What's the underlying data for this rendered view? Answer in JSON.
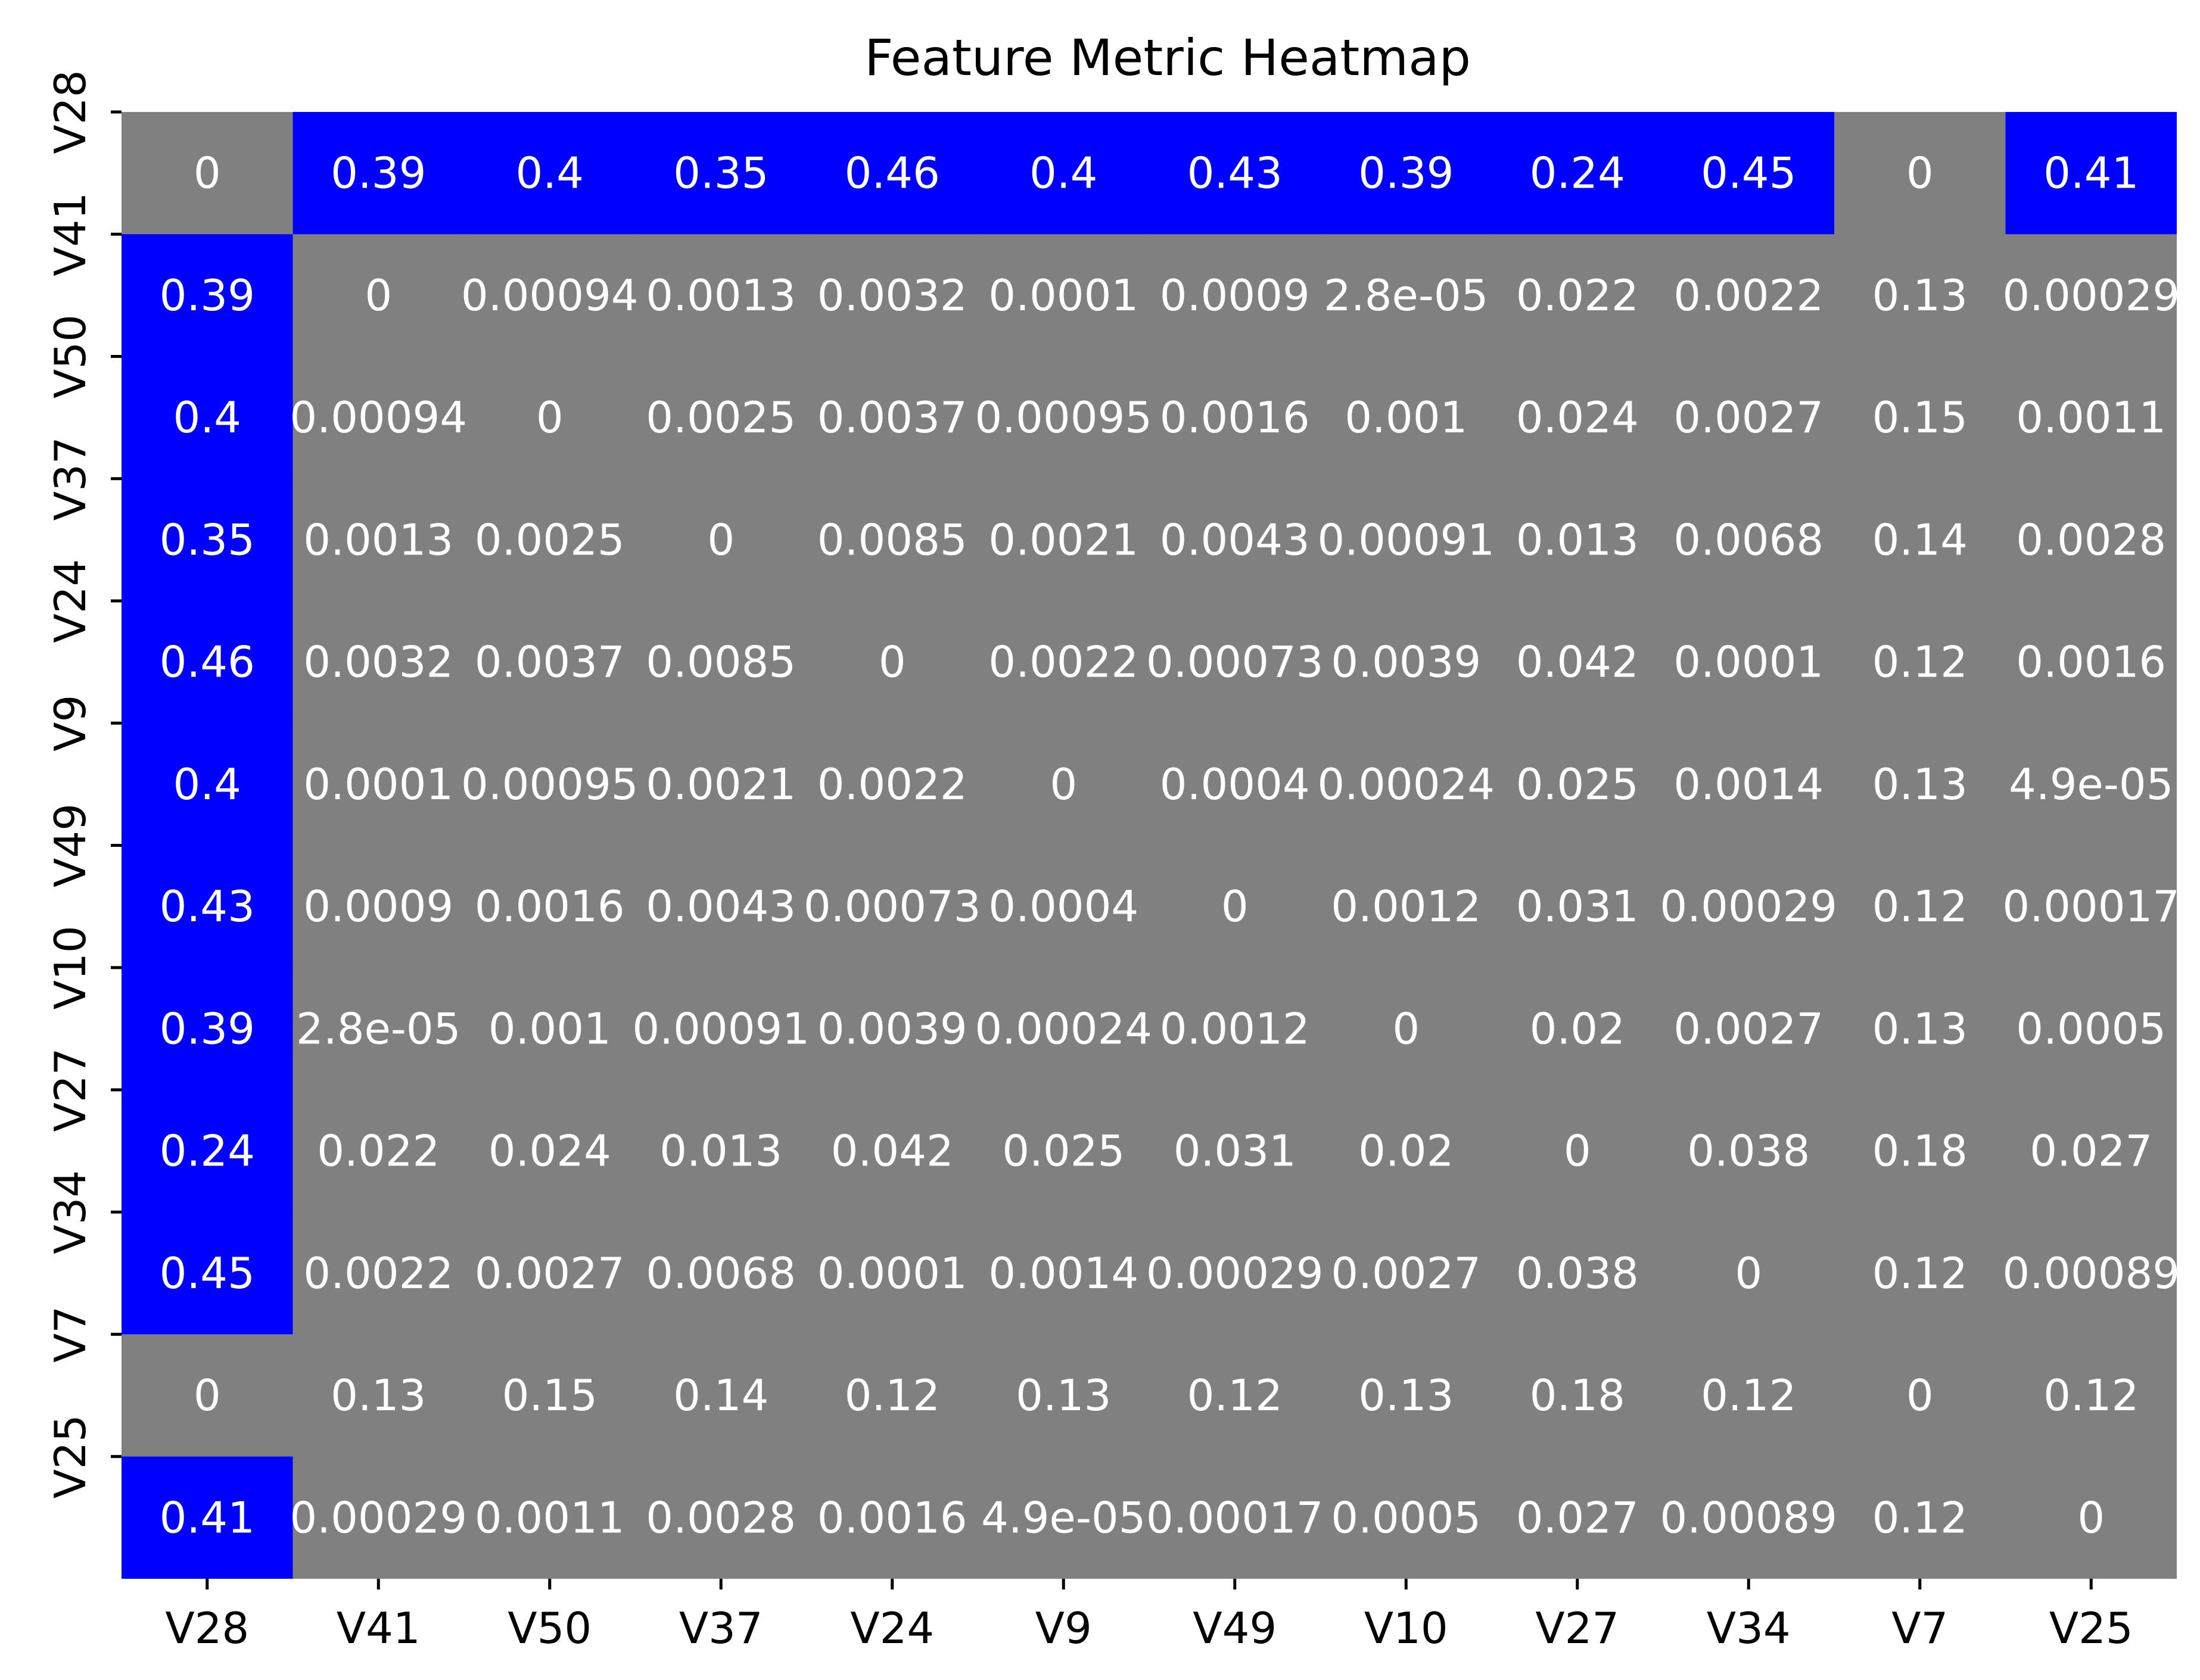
{
  "chart_data": {
    "type": "heatmap",
    "title": "Feature Metric Heatmap",
    "xlabel": "",
    "ylabel": "",
    "x_categories": [
      "V28",
      "V41",
      "V50",
      "V37",
      "V24",
      "V9",
      "V49",
      "V10",
      "V27",
      "V34",
      "V7",
      "V25"
    ],
    "y_categories": [
      "V28",
      "V41",
      "V50",
      "V37",
      "V24",
      "V9",
      "V49",
      "V10",
      "V27",
      "V34",
      "V7",
      "V25"
    ],
    "values": [
      [
        0,
        0.39,
        0.4,
        0.35,
        0.46,
        0.4,
        0.43,
        0.39,
        0.24,
        0.45,
        0,
        0.41
      ],
      [
        0.39,
        0,
        0.00094,
        0.0013,
        0.0032,
        0.0001,
        0.0009,
        2.8e-05,
        0.022,
        0.0022,
        0.13,
        0.00029
      ],
      [
        0.4,
        0.00094,
        0,
        0.0025,
        0.0037,
        0.00095,
        0.0016,
        0.001,
        0.024,
        0.0027,
        0.15,
        0.0011
      ],
      [
        0.35,
        0.0013,
        0.0025,
        0,
        0.0085,
        0.0021,
        0.0043,
        0.00091,
        0.013,
        0.0068,
        0.14,
        0.0028
      ],
      [
        0.46,
        0.0032,
        0.0037,
        0.0085,
        0,
        0.0022,
        0.00073,
        0.0039,
        0.042,
        0.0001,
        0.12,
        0.0016
      ],
      [
        0.4,
        0.0001,
        0.00095,
        0.0021,
        0.0022,
        0,
        0.0004,
        0.00024,
        0.025,
        0.0014,
        0.13,
        4.9e-05
      ],
      [
        0.43,
        0.0009,
        0.0016,
        0.0043,
        0.00073,
        0.0004,
        0,
        0.0012,
        0.031,
        0.00029,
        0.12,
        0.00017
      ],
      [
        0.39,
        2.8e-05,
        0.001,
        0.00091,
        0.0039,
        0.00024,
        0.0012,
        0,
        0.02,
        0.0027,
        0.13,
        0.0005
      ],
      [
        0.24,
        0.022,
        0.024,
        0.013,
        0.042,
        0.025,
        0.031,
        0.02,
        0,
        0.038,
        0.18,
        0.027
      ],
      [
        0.45,
        0.0022,
        0.0027,
        0.0068,
        0.0001,
        0.0014,
        0.00029,
        0.0027,
        0.038,
        0,
        0.12,
        0.00089
      ],
      [
        0,
        0.13,
        0.15,
        0.14,
        0.12,
        0.13,
        0.12,
        0.13,
        0.18,
        0.12,
        0,
        0.12
      ],
      [
        0.41,
        0.00029,
        0.0011,
        0.0028,
        0.0016,
        4.9e-05,
        0.00017,
        0.0005,
        0.027,
        0.00089,
        0.12,
        0
      ]
    ],
    "value_labels": [
      [
        "0",
        "0.39",
        "0.4",
        "0.35",
        "0.46",
        "0.4",
        "0.43",
        "0.39",
        "0.24",
        "0.45",
        "0",
        "0.41"
      ],
      [
        "0.39",
        "0",
        "0.00094",
        "0.0013",
        "0.0032",
        "0.0001",
        "0.0009",
        "2.8e-05",
        "0.022",
        "0.0022",
        "0.13",
        "0.00029"
      ],
      [
        "0.4",
        "0.00094",
        "0",
        "0.0025",
        "0.0037",
        "0.00095",
        "0.0016",
        "0.001",
        "0.024",
        "0.0027",
        "0.15",
        "0.0011"
      ],
      [
        "0.35",
        "0.0013",
        "0.0025",
        "0",
        "0.0085",
        "0.0021",
        "0.0043",
        "0.00091",
        "0.013",
        "0.0068",
        "0.14",
        "0.0028"
      ],
      [
        "0.46",
        "0.0032",
        "0.0037",
        "0.0085",
        "0",
        "0.0022",
        "0.00073",
        "0.0039",
        "0.042",
        "0.0001",
        "0.12",
        "0.0016"
      ],
      [
        "0.4",
        "0.0001",
        "0.00095",
        "0.0021",
        "0.0022",
        "0",
        "0.0004",
        "0.00024",
        "0.025",
        "0.0014",
        "0.13",
        "4.9e-05"
      ],
      [
        "0.43",
        "0.0009",
        "0.0016",
        "0.0043",
        "0.00073",
        "0.0004",
        "0",
        "0.0012",
        "0.031",
        "0.00029",
        "0.12",
        "0.00017"
      ],
      [
        "0.39",
        "2.8e-05",
        "0.001",
        "0.00091",
        "0.0039",
        "0.00024",
        "0.0012",
        "0",
        "0.02",
        "0.0027",
        "0.13",
        "0.0005"
      ],
      [
        "0.24",
        "0.022",
        "0.024",
        "0.013",
        "0.042",
        "0.025",
        "0.031",
        "0.02",
        "0",
        "0.038",
        "0.18",
        "0.027"
      ],
      [
        "0.45",
        "0.0022",
        "0.0027",
        "0.0068",
        "0.0001",
        "0.0014",
        "0.00029",
        "0.0027",
        "0.038",
        "0",
        "0.12",
        "0.00089"
      ],
      [
        "0",
        "0.13",
        "0.15",
        "0.14",
        "0.12",
        "0.13",
        "0.12",
        "0.13",
        "0.18",
        "0.12",
        "0",
        "0.12"
      ],
      [
        "0.41",
        "0.00029",
        "0.0011",
        "0.0028",
        "0.0016",
        "4.9e-05",
        "0.00017",
        "0.0005",
        "0.027",
        "0.00089",
        "0.12",
        "0"
      ]
    ],
    "highlight_threshold": 0.2,
    "colors": {
      "high": "#0000ff",
      "low": "#808080",
      "text": "#ffffff",
      "axis": "#000000",
      "background": "#ffffff"
    },
    "colorbar": false,
    "grid": false
  }
}
